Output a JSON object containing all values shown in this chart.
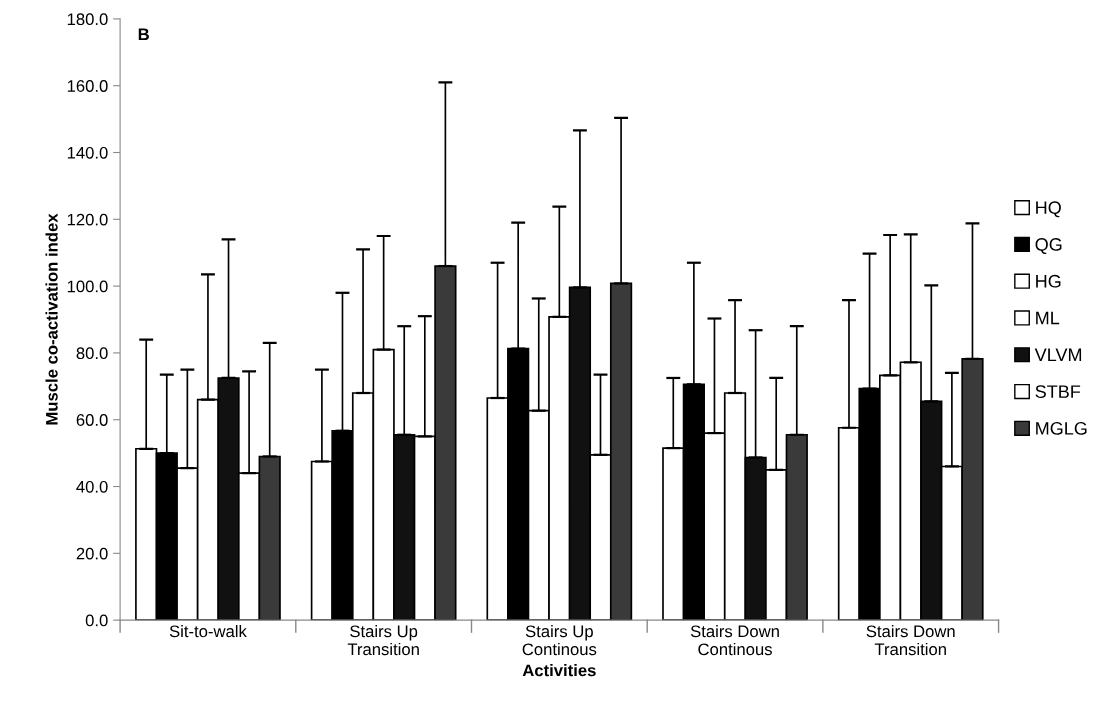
{
  "chart_data": {
    "type": "bar",
    "title": "B",
    "xlabel": "Activities",
    "ylabel": "Muscle co-activation index",
    "categories": [
      "Sit-to-walk",
      "Stairs Up\nTransition",
      "Stairs Up\nContinous",
      "Stairs Down\nContinous",
      "Stairs Down\nTransition"
    ],
    "series": [
      {
        "name": "HQ",
        "color": "#ffffff",
        "values": [
          51.3,
          47.5,
          66.5,
          51.5,
          57.6
        ],
        "errors": [
          [
            51.3,
            84.0
          ],
          [
            47.5,
            75.0
          ],
          [
            66.5,
            107.0
          ],
          [
            51.5,
            72.5
          ],
          [
            57.6,
            95.8
          ]
        ]
      },
      {
        "name": "QG",
        "color": "#000000",
        "values": [
          50.0,
          56.7,
          81.3,
          70.6,
          69.3
        ],
        "errors": [
          [
            50.0,
            73.5
          ],
          [
            56.7,
            98.0
          ],
          [
            81.3,
            119.0
          ],
          [
            70.6,
            107.0
          ],
          [
            69.3,
            109.7
          ]
        ]
      },
      {
        "name": "HG",
        "color": "#ffffff",
        "values": [
          45.5,
          68.0,
          62.7,
          56.0,
          73.3
        ],
        "errors": [
          [
            45.5,
            75.0
          ],
          [
            68.0,
            111.0
          ],
          [
            62.7,
            96.3
          ],
          [
            56.0,
            90.3
          ],
          [
            73.3,
            115.3
          ]
        ]
      },
      {
        "name": "ML",
        "color": "#ffffff",
        "values": [
          66.0,
          81.0,
          90.8,
          68.0,
          77.2
        ],
        "errors": [
          [
            66.0,
            103.5
          ],
          [
            81.0,
            115.0
          ],
          [
            90.8,
            123.8
          ],
          [
            68.0,
            95.8
          ],
          [
            77.2,
            115.5
          ]
        ]
      },
      {
        "name": "VLVM",
        "color": "#111111",
        "values": [
          72.5,
          55.5,
          99.6,
          48.7,
          65.5
        ],
        "errors": [
          [
            72.5,
            114.0
          ],
          [
            55.5,
            88.0
          ],
          [
            99.6,
            146.6
          ],
          [
            48.7,
            86.8
          ],
          [
            65.5,
            100.2
          ]
        ]
      },
      {
        "name": "STBF",
        "color": "#ffffff",
        "values": [
          44.0,
          55.0,
          49.5,
          45.0,
          46.0
        ],
        "errors": [
          [
            44.0,
            74.5
          ],
          [
            55.0,
            91.0
          ],
          [
            49.5,
            73.5
          ],
          [
            45.0,
            72.5
          ],
          [
            46.0,
            74.0
          ]
        ]
      },
      {
        "name": "MGLG",
        "color": "#3a3a3a",
        "values": [
          49.0,
          106.0,
          100.8,
          55.5,
          78.2
        ],
        "errors": [
          [
            49.0,
            83.0
          ],
          [
            106.0,
            161.0
          ],
          [
            100.8,
            150.4
          ],
          [
            55.5,
            88.0
          ],
          [
            78.2,
            118.8
          ]
        ]
      }
    ],
    "ylim": [
      0,
      180
    ],
    "yticks": [
      {
        "value": 0,
        "label": "0.0"
      },
      {
        "value": 20,
        "label": "20.0"
      },
      {
        "value": 40,
        "label": "40.0"
      },
      {
        "value": 60,
        "label": "60.0"
      },
      {
        "value": 80,
        "label": "80.0"
      },
      {
        "value": 100,
        "label": "100.0"
      },
      {
        "value": 120,
        "label": "120.0"
      },
      {
        "value": 140,
        "label": "140.0"
      },
      {
        "value": 160,
        "label": "160.0"
      },
      {
        "value": 180,
        "label": "180.0"
      }
    ],
    "grid": false,
    "legend": "right"
  }
}
